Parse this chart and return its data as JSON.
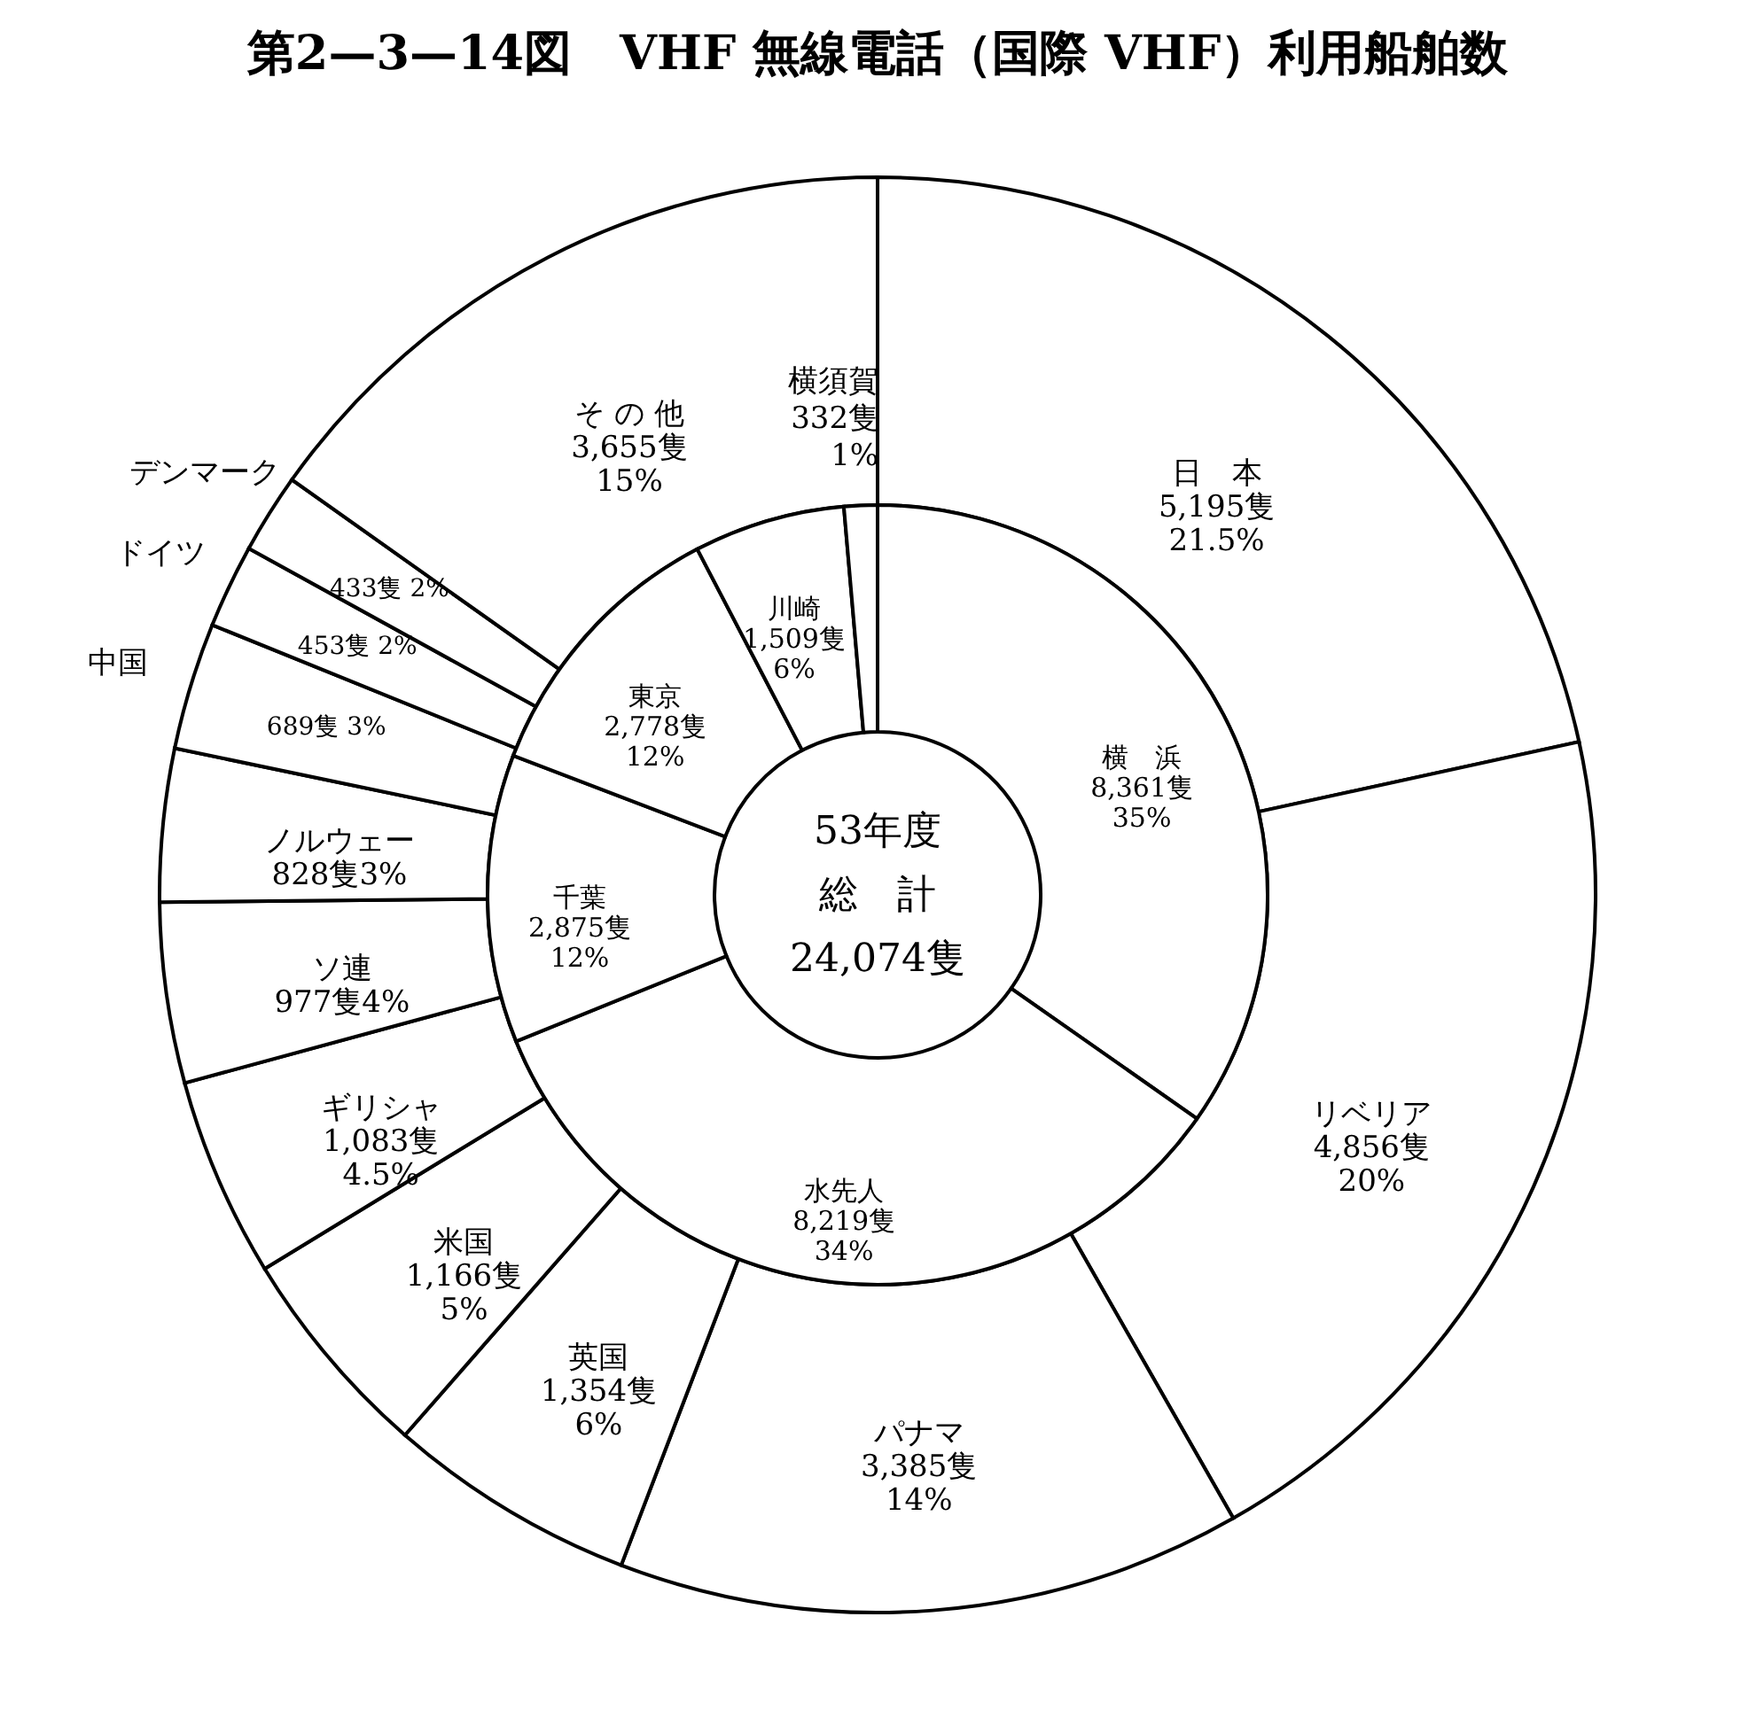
{
  "chart_data": [
    {
      "type": "donut",
      "title": "第2—3—14図　VHF 無線電話（国際 VHF）利用船舶数",
      "categories": [
        "日　本",
        "リベリア",
        "パナマ",
        "英国",
        "米国",
        "ギリシャ",
        "ソ連",
        "ノルウェー",
        "中国",
        "ドイツ",
        "デンマーク",
        "そ の 他"
      ],
      "values": [
        5195,
        4856,
        3385,
        1354,
        1166,
        1083,
        977,
        828,
        689,
        453,
        433,
        3655
      ],
      "value_labels": [
        "5,195隻\n21.5%",
        "4,856隻\n20%",
        "3,385隻\n14%",
        "1,354隻\n6%",
        "1,166隻\n5%",
        "1,083隻\n4.5%",
        "977隻4%",
        "828隻3%",
        "689隻 3%",
        "453隻 2%",
        "433隻 2%",
        "3,655隻\n15%"
      ],
      "colors": [
        "#ffffff",
        "#ffffff",
        "#ffffff",
        "#ffffff",
        "#ffffff",
        "#ffffff",
        "#ffffff",
        "#ffffff",
        "#ffffff",
        "#ffffff",
        "#ffffff",
        "#ffffff"
      ]
    },
    {
      "type": "donut",
      "categories": [
        "横　浜",
        "水先人",
        "千葉",
        "東京",
        "川崎",
        "横須賀"
      ],
      "values": [
        8361,
        8219,
        2875,
        2778,
        1509,
        332
      ],
      "value_labels": [
        "8,361隻\n35%",
        "8,219隻\n34%",
        "2,875隻\n12%",
        "2,778隻\n12%",
        "1,509隻\n6%",
        "332隻\n1%"
      ],
      "colors": [
        "#ffffff",
        "#ffffff",
        "#ffffff",
        "#ffffff",
        "#ffffff",
        "#ffffff"
      ],
      "annotations": [
        "53年度",
        "総　計",
        "24,074隻"
      ]
    }
  ]
}
